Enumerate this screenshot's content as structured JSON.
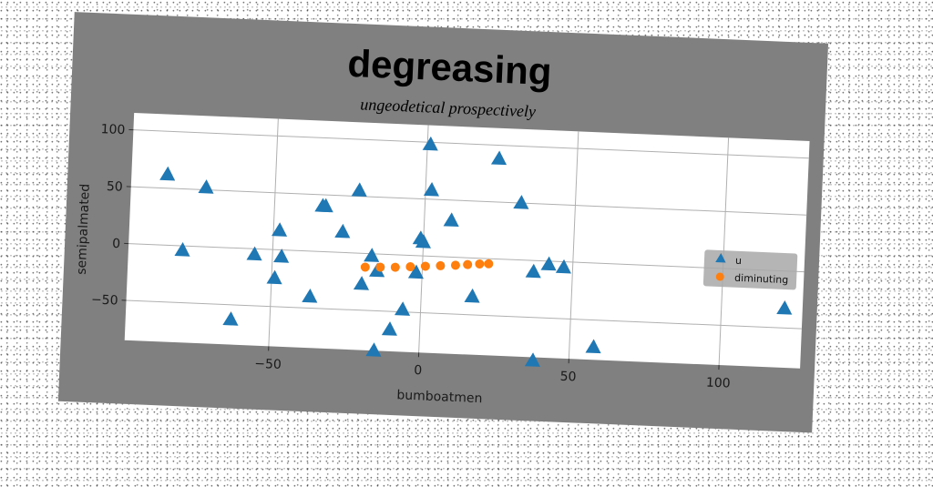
{
  "chart_data": {
    "type": "scatter",
    "title": "degreasing",
    "subtitle": "ungeodetical prospectively",
    "xlabel": "bumboatmen",
    "ylabel": "semipalmated",
    "xlim": [
      -98,
      127
    ],
    "ylim": [
      -85,
      115
    ],
    "xticks": [
      -50,
      0,
      50,
      100
    ],
    "yticks": [
      -50,
      0,
      50,
      100
    ],
    "xtick_labels": [
      "−50",
      "0",
      "50",
      "100"
    ],
    "ytick_labels": [
      "−50",
      "0",
      "50",
      "100"
    ],
    "grid": true,
    "legend_position": "right",
    "series": [
      {
        "name": "u",
        "marker": "triangle",
        "color": "#1f77b4",
        "points": [
          [
            -86,
            62
          ],
          [
            -73,
            52
          ],
          [
            -80,
            -4
          ],
          [
            -63,
            -63
          ],
          [
            -56,
            -5
          ],
          [
            -48,
            17
          ],
          [
            -47,
            -6
          ],
          [
            -49,
            -25
          ],
          [
            -37,
            -40
          ],
          [
            -34,
            40
          ],
          [
            -33,
            40
          ],
          [
            -27,
            18
          ],
          [
            -22,
            55
          ],
          [
            -20,
            -27
          ],
          [
            -17,
            -2
          ],
          [
            -15,
            -15
          ],
          [
            -15,
            -85
          ],
          [
            -10,
            -66
          ],
          [
            -6,
            -48
          ],
          [
            -2,
            -15
          ],
          [
            -1,
            15
          ],
          [
            0,
            12
          ],
          [
            1,
            98
          ],
          [
            2,
            58
          ],
          [
            9,
            32
          ],
          [
            17,
            -34
          ],
          [
            24,
            88
          ],
          [
            32,
            50
          ],
          [
            37,
            -10
          ],
          [
            38,
            -88
          ],
          [
            42,
            -3
          ],
          [
            47,
            -5
          ],
          [
            58,
            -74
          ],
          [
            121,
            -33
          ]
        ]
      },
      {
        "name": "diminuting",
        "marker": "circle",
        "color": "#ff7f0e",
        "points": [
          [
            -19,
            -12
          ],
          [
            -14,
            -11.5
          ],
          [
            -9,
            -11
          ],
          [
            -4,
            -10
          ],
          [
            1,
            -9
          ],
          [
            6,
            -8
          ],
          [
            11,
            -7
          ],
          [
            15,
            -6
          ],
          [
            19,
            -5
          ],
          [
            22,
            -4.5
          ]
        ]
      }
    ]
  }
}
